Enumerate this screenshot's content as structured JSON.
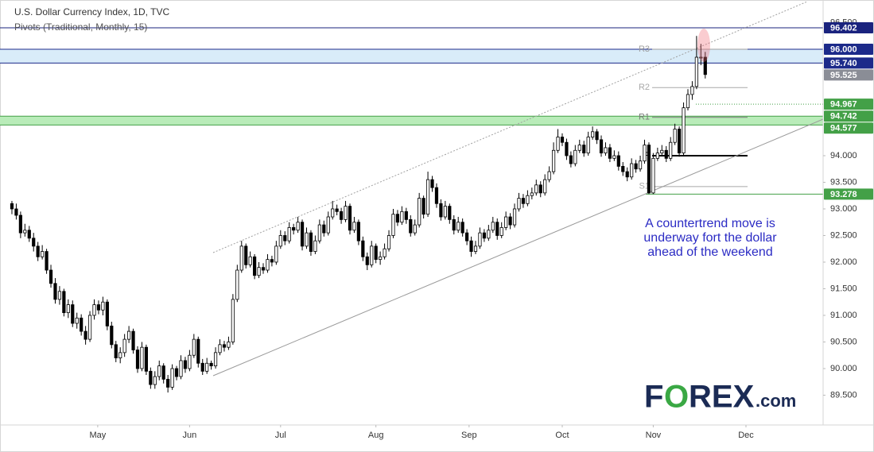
{
  "chart_data": {
    "type": "candlestick",
    "title": "U.S. Dollar Currency Index, 1D, TVC",
    "subtitle": "Pivots (Traditional, Monthly, 15)",
    "annotation": [
      "A countertrend move is",
      "underway fort the dollar",
      "ahead of the weekend"
    ],
    "logo": [
      "F",
      "O",
      "REX",
      ".com"
    ],
    "up_color": "#ffffff",
    "down_color": "#000000",
    "wick_color": "#000000",
    "grid": false,
    "xlim": [
      -2.75,
      187.2
    ],
    "xticks": [
      {
        "value": 19.8,
        "label": "May"
      },
      {
        "value": 41,
        "label": "Jun"
      },
      {
        "value": 62,
        "label": "Jul"
      },
      {
        "value": 84,
        "label": "Aug"
      },
      {
        "value": 105.5,
        "label": "Sep"
      },
      {
        "value": 127,
        "label": "Oct"
      },
      {
        "value": 148,
        "label": "Nov"
      },
      {
        "value": 169.4,
        "label": "Dec"
      }
    ],
    "ylim": [
      88.94,
      96.925
    ],
    "yticks": [
      {
        "value": 89.5,
        "label": "89.500"
      },
      {
        "value": 90,
        "label": "90.000"
      },
      {
        "value": 90.5,
        "label": "90.500"
      },
      {
        "value": 91,
        "label": "91.000"
      },
      {
        "value": 91.5,
        "label": "91.500"
      },
      {
        "value": 92,
        "label": "92.000"
      },
      {
        "value": 92.5,
        "label": "92.500"
      },
      {
        "value": 93,
        "label": "93.000"
      },
      {
        "value": 93.5,
        "label": "93.500"
      },
      {
        "value": 94,
        "label": "94.000"
      },
      {
        "value": 96.5,
        "label": "96.500"
      }
    ],
    "levels": [
      {
        "value": 96.402,
        "color": "#1a237e"
      },
      {
        "value": 94.967,
        "color": "#43a047",
        "dash": true
      },
      {
        "value": 93.278,
        "color": "#43a047"
      }
    ],
    "zones": [
      {
        "top": {
          "value": 96,
          "label": "96.000"
        },
        "bottom": {
          "value": 95.74,
          "label": "95.740"
        },
        "color": "#1c2a8a",
        "fill": "#d9ecf9"
      },
      {
        "top": {
          "value": 94.742,
          "label": "94.742"
        },
        "bottom": {
          "value": 94.577,
          "label": "94.577"
        },
        "color": "#43a047",
        "fill": "#b9ecb9"
      }
    ],
    "last_color": "#8a8d96",
    "pivots": [
      {
        "label": "R3",
        "value": 96.0,
        "color": "#9e9e9e"
      },
      {
        "label": "R2",
        "value": 95.28,
        "color": "#a8a8a8"
      },
      {
        "label": "R1",
        "value": 94.72,
        "color": "#7a7a7a"
      },
      {
        "label": "P",
        "value": 94.0,
        "color": "#000000"
      },
      {
        "label": "S1",
        "value": 93.42,
        "color": "#a8a8a8"
      }
    ],
    "ohlc": [
      [
        93.1,
        93.15,
        92.9,
        93.0
      ],
      [
        93.0,
        93.1,
        92.8,
        92.88
      ],
      [
        92.88,
        92.95,
        92.45,
        92.55
      ],
      [
        92.55,
        92.72,
        92.48,
        92.6
      ],
      [
        92.6,
        92.68,
        92.38,
        92.45
      ],
      [
        92.45,
        92.55,
        92.2,
        92.3
      ],
      [
        92.3,
        92.38,
        92.02,
        92.1
      ],
      [
        92.1,
        92.32,
        92.05,
        92.2
      ],
      [
        92.2,
        92.25,
        91.78,
        91.85
      ],
      [
        91.85,
        91.95,
        91.52,
        91.6
      ],
      [
        91.6,
        91.7,
        91.22,
        91.3
      ],
      [
        91.3,
        91.55,
        91.2,
        91.45
      ],
      [
        91.45,
        91.5,
        90.98,
        91.05
      ],
      [
        91.05,
        91.3,
        90.95,
        91.2
      ],
      [
        91.2,
        91.28,
        90.78,
        90.85
      ],
      [
        90.85,
        91.05,
        90.75,
        90.95
      ],
      [
        90.95,
        91.02,
        90.62,
        90.7
      ],
      [
        90.7,
        90.8,
        90.45,
        90.55
      ],
      [
        90.55,
        91.08,
        90.5,
        91.0
      ],
      [
        91.0,
        91.3,
        90.92,
        91.2
      ],
      [
        91.2,
        91.28,
        91.02,
        91.1
      ],
      [
        91.1,
        91.35,
        91.0,
        91.25
      ],
      [
        91.25,
        91.3,
        90.72,
        90.8
      ],
      [
        90.8,
        90.88,
        90.38,
        90.45
      ],
      [
        90.45,
        90.52,
        90.12,
        90.2
      ],
      [
        90.2,
        90.4,
        90.1,
        90.3
      ],
      [
        90.3,
        90.65,
        90.22,
        90.55
      ],
      [
        90.55,
        90.8,
        90.48,
        90.7
      ],
      [
        90.7,
        90.75,
        90.28,
        90.35
      ],
      [
        90.35,
        90.42,
        89.92,
        90.0
      ],
      [
        90.0,
        90.5,
        89.95,
        90.4
      ],
      [
        90.4,
        90.45,
        89.88,
        89.95
      ],
      [
        89.95,
        90.02,
        89.62,
        89.7
      ],
      [
        89.7,
        89.95,
        89.62,
        89.85
      ],
      [
        89.85,
        90.15,
        89.78,
        90.05
      ],
      [
        90.05,
        90.1,
        89.72,
        89.8
      ],
      [
        89.8,
        89.88,
        89.55,
        89.65
      ],
      [
        89.65,
        90.08,
        89.6,
        90.0
      ],
      [
        90.0,
        90.05,
        89.78,
        89.85
      ],
      [
        89.85,
        90.25,
        89.8,
        90.15
      ],
      [
        90.15,
        90.22,
        89.92,
        90.0
      ],
      [
        90.0,
        90.35,
        89.95,
        90.25
      ],
      [
        90.25,
        90.65,
        90.2,
        90.55
      ],
      [
        90.55,
        90.6,
        90.02,
        90.1
      ],
      [
        90.1,
        90.18,
        89.88,
        89.95
      ],
      [
        89.95,
        90.2,
        89.9,
        90.1
      ],
      [
        90.1,
        90.15,
        89.98,
        90.05
      ],
      [
        90.05,
        90.4,
        90.0,
        90.3
      ],
      [
        90.3,
        90.55,
        90.25,
        90.45
      ],
      [
        90.45,
        90.52,
        90.32,
        90.4
      ],
      [
        90.4,
        90.6,
        90.35,
        90.5
      ],
      [
        90.5,
        91.4,
        90.45,
        91.3
      ],
      [
        91.3,
        91.95,
        91.25,
        91.85
      ],
      [
        91.85,
        92.4,
        91.8,
        92.3
      ],
      [
        92.3,
        92.35,
        91.88,
        91.95
      ],
      [
        91.95,
        92.2,
        91.9,
        92.1
      ],
      [
        92.1,
        92.15,
        91.68,
        91.75
      ],
      [
        91.75,
        92.0,
        91.7,
        91.9
      ],
      [
        91.9,
        91.98,
        91.78,
        91.85
      ],
      [
        91.85,
        92.15,
        91.8,
        92.05
      ],
      [
        92.05,
        92.12,
        91.92,
        92.0
      ],
      [
        92.0,
        92.4,
        91.95,
        92.3
      ],
      [
        92.3,
        92.6,
        92.25,
        92.5
      ],
      [
        92.5,
        92.58,
        92.32,
        92.4
      ],
      [
        92.4,
        92.75,
        92.35,
        92.65
      ],
      [
        92.65,
        92.72,
        92.52,
        92.6
      ],
      [
        92.6,
        92.85,
        92.55,
        92.75
      ],
      [
        92.75,
        92.8,
        92.22,
        92.3
      ],
      [
        92.3,
        92.65,
        92.25,
        92.55
      ],
      [
        92.55,
        92.6,
        92.12,
        92.2
      ],
      [
        92.2,
        92.5,
        92.15,
        92.4
      ],
      [
        92.4,
        92.8,
        92.35,
        92.7
      ],
      [
        92.7,
        92.78,
        92.48,
        92.55
      ],
      [
        92.55,
        92.95,
        92.5,
        92.85
      ],
      [
        92.85,
        93.15,
        92.8,
        93.0
      ],
      [
        93.0,
        93.08,
        92.88,
        92.95
      ],
      [
        92.95,
        93.02,
        92.72,
        92.8
      ],
      [
        92.8,
        93.15,
        92.75,
        93.05
      ],
      [
        93.05,
        93.1,
        92.52,
        92.6
      ],
      [
        92.6,
        92.85,
        92.55,
        92.75
      ],
      [
        92.75,
        92.8,
        92.32,
        92.4
      ],
      [
        92.4,
        92.48,
        92.02,
        92.1
      ],
      [
        92.1,
        92.18,
        91.85,
        91.95
      ],
      [
        91.95,
        92.4,
        91.9,
        92.3
      ],
      [
        92.3,
        92.35,
        91.98,
        92.05
      ],
      [
        92.05,
        92.2,
        91.95,
        92.1
      ],
      [
        92.1,
        92.35,
        92.05,
        92.25
      ],
      [
        92.25,
        92.6,
        92.2,
        92.5
      ],
      [
        92.5,
        93.0,
        92.45,
        92.9
      ],
      [
        92.9,
        92.98,
        92.68,
        92.75
      ],
      [
        92.75,
        93.05,
        92.7,
        92.95
      ],
      [
        92.95,
        93.02,
        92.72,
        92.8
      ],
      [
        92.8,
        92.88,
        92.48,
        92.55
      ],
      [
        92.55,
        92.8,
        92.5,
        92.7
      ],
      [
        92.7,
        93.3,
        92.65,
        93.2
      ],
      [
        93.2,
        93.25,
        92.82,
        92.9
      ],
      [
        92.9,
        93.7,
        92.85,
        93.55
      ],
      [
        93.55,
        93.62,
        93.32,
        93.4
      ],
      [
        93.4,
        93.48,
        93.02,
        93.1
      ],
      [
        93.1,
        93.18,
        92.78,
        92.85
      ],
      [
        92.85,
        93.15,
        92.8,
        93.05
      ],
      [
        93.05,
        93.1,
        92.72,
        92.8
      ],
      [
        92.8,
        92.88,
        92.52,
        92.6
      ],
      [
        92.6,
        92.85,
        92.55,
        92.75
      ],
      [
        92.75,
        92.82,
        92.48,
        92.55
      ],
      [
        92.55,
        92.62,
        92.32,
        92.4
      ],
      [
        92.4,
        92.48,
        92.1,
        92.2
      ],
      [
        92.2,
        92.4,
        92.15,
        92.3
      ],
      [
        92.3,
        92.65,
        92.25,
        92.55
      ],
      [
        92.55,
        92.62,
        92.38,
        92.45
      ],
      [
        92.45,
        92.7,
        92.4,
        92.6
      ],
      [
        92.6,
        92.85,
        92.55,
        92.75
      ],
      [
        92.75,
        92.82,
        92.42,
        92.5
      ],
      [
        92.5,
        92.75,
        92.45,
        92.65
      ],
      [
        92.65,
        92.95,
        92.6,
        92.85
      ],
      [
        92.85,
        92.92,
        92.62,
        92.7
      ],
      [
        92.7,
        93.1,
        92.65,
        93.0
      ],
      [
        93.0,
        93.3,
        92.95,
        93.2
      ],
      [
        93.2,
        93.28,
        93.02,
        93.1
      ],
      [
        93.1,
        93.35,
        93.05,
        93.25
      ],
      [
        93.25,
        93.4,
        93.18,
        93.3
      ],
      [
        93.3,
        93.55,
        93.25,
        93.45
      ],
      [
        93.45,
        93.52,
        93.22,
        93.3
      ],
      [
        93.3,
        93.65,
        93.25,
        93.55
      ],
      [
        93.55,
        93.8,
        93.5,
        93.7
      ],
      [
        93.7,
        94.25,
        93.65,
        94.1
      ],
      [
        94.1,
        94.5,
        94.05,
        94.35
      ],
      [
        94.35,
        94.42,
        94.18,
        94.25
      ],
      [
        94.25,
        94.32,
        93.92,
        94.0
      ],
      [
        94.0,
        94.08,
        93.78,
        93.85
      ],
      [
        93.85,
        94.2,
        93.8,
        94.1
      ],
      [
        94.1,
        94.3,
        94.05,
        94.2
      ],
      [
        94.2,
        94.28,
        93.98,
        94.05
      ],
      [
        94.05,
        94.45,
        94.0,
        94.35
      ],
      [
        94.35,
        94.55,
        94.3,
        94.45
      ],
      [
        94.45,
        94.5,
        94.22,
        94.3
      ],
      [
        94.3,
        94.38,
        93.98,
        94.05
      ],
      [
        94.05,
        94.25,
        94.0,
        94.15
      ],
      [
        94.15,
        94.22,
        93.88,
        93.95
      ],
      [
        93.95,
        94.1,
        93.9,
        94.0
      ],
      [
        94.0,
        94.08,
        93.72,
        93.8
      ],
      [
        93.8,
        93.88,
        93.62,
        93.7
      ],
      [
        93.7,
        93.78,
        93.52,
        93.6
      ],
      [
        93.6,
        93.95,
        93.55,
        93.85
      ],
      [
        93.85,
        93.92,
        93.68,
        93.75
      ],
      [
        93.75,
        94.0,
        93.7,
        93.9
      ],
      [
        93.9,
        94.3,
        93.85,
        94.2
      ],
      [
        94.2,
        94.25,
        93.28,
        93.3
      ],
      [
        93.3,
        94.05,
        93.28,
        93.95
      ],
      [
        93.95,
        94.15,
        93.9,
        94.05
      ],
      [
        94.05,
        94.2,
        94.0,
        94.1
      ],
      [
        94.1,
        94.18,
        93.88,
        93.95
      ],
      [
        93.95,
        94.35,
        93.9,
        94.25
      ],
      [
        94.25,
        94.6,
        94.2,
        94.5
      ],
      [
        94.5,
        94.55,
        93.98,
        94.05
      ],
      [
        94.05,
        95.0,
        94.0,
        94.9
      ],
      [
        94.9,
        95.25,
        94.85,
        95.15
      ],
      [
        95.15,
        95.4,
        95.05,
        95.3
      ],
      [
        95.3,
        96.25,
        95.25,
        95.85
      ],
      [
        95.85,
        96.1,
        95.7,
        95.85
      ],
      [
        95.85,
        95.95,
        95.45,
        95.525
      ]
    ]
  }
}
